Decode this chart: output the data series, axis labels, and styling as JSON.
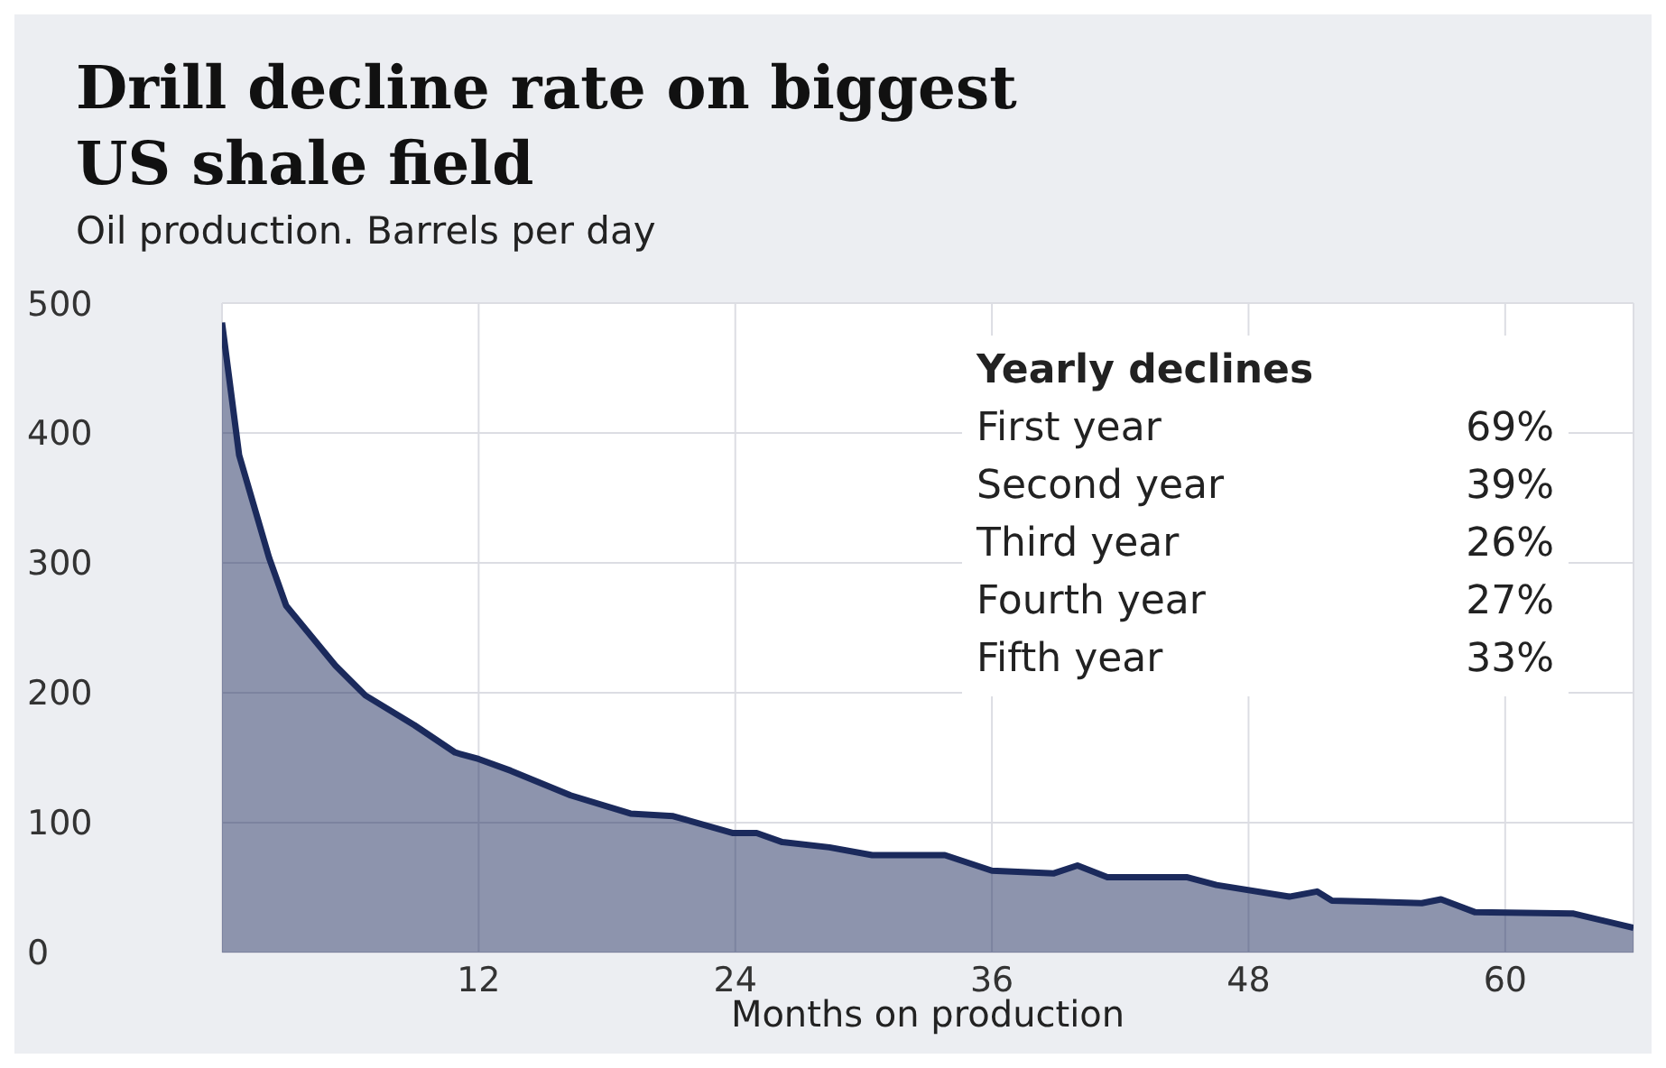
{
  "chart_data": {
    "type": "area",
    "title": "Drill decline rate on biggest US shale field",
    "subtitle": "Oil production. Barrels per day",
    "xlabel": "Months on production",
    "annotations": [
      "Yearly declines",
      "First year",
      "69%",
      "Second year",
      "39%",
      "Third year",
      "26%",
      "Fourth year",
      "27%",
      "Fifth year",
      "33%"
    ],
    "x": [
      0,
      0.8,
      2.2,
      3,
      5.3,
      6.7,
      9,
      10.9,
      12,
      13.5,
      16.3,
      19.1,
      21.1,
      23.9,
      25,
      26.2,
      28.4,
      30.4,
      33.8,
      36,
      38.9,
      40,
      41.4,
      45.1,
      46.5,
      49.9,
      51.2,
      51.9,
      56.1,
      57,
      58.6,
      63.2,
      66
    ],
    "series": [
      {
        "color": "#1b2a5c",
        "values": [
          485,
          383,
          304,
          267,
          221,
          198,
          175,
          154,
          149,
          140,
          121,
          107,
          105,
          92,
          92,
          85,
          81,
          75,
          75,
          63,
          61,
          67,
          58,
          58,
          52,
          43,
          47,
          40,
          38,
          41,
          31,
          30,
          19
        ]
      }
    ],
    "xlim": [
      0,
      66
    ],
    "xticks": [
      12,
      24,
      36,
      48,
      60
    ],
    "ylim": [
      0,
      500
    ],
    "yticks": [
      0,
      100,
      200,
      300,
      400,
      500
    ],
    "grid": true
  }
}
